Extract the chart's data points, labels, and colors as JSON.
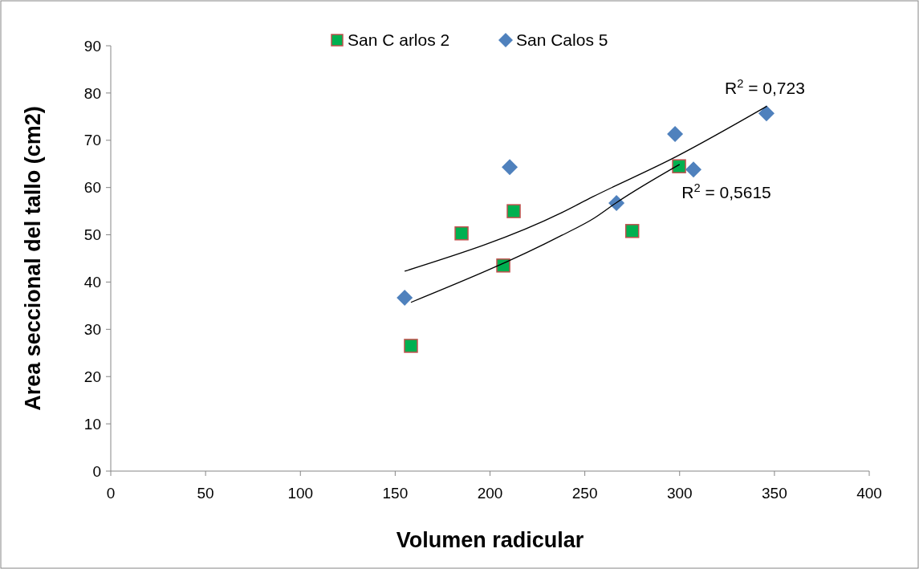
{
  "chart_data": {
    "type": "scatter",
    "xlabel": "Volumen radicular",
    "ylabel": "Area seccional del tallo (cm2)",
    "xlim": [
      0,
      400
    ],
    "xticks": [
      0,
      50,
      100,
      150,
      200,
      250,
      300,
      350,
      400
    ],
    "ylim": [
      0,
      90
    ],
    "yticks": [
      0,
      10,
      20,
      30,
      40,
      50,
      60,
      70,
      80,
      90
    ],
    "grid": false,
    "legend": "top",
    "series": [
      {
        "name": "San C arlos 2",
        "marker": "square",
        "color": "#00b050",
        "x": [
          158.3,
          185,
          207,
          212.5,
          275,
          299.7
        ],
        "values": [
          26.5,
          50.3,
          43.5,
          55,
          50.8,
          64.5
        ]
      },
      {
        "name": "San Calos 5",
        "marker": "diamond",
        "color": "#4f81bd",
        "x": [
          155,
          210.4,
          266.7,
          297.6,
          307.3,
          345.8
        ],
        "values": [
          36.7,
          64.3,
          56.7,
          71.3,
          63.8,
          75.7
        ]
      },
      {
        "type": "line",
        "marker": "none",
        "color": "#000000",
        "x": [
          158.3,
          237.9,
          254.8,
          267,
          300
        ],
        "values": [
          35.7,
          49.9,
          53.5,
          56.9,
          64.9
        ]
      },
      {
        "type": "line",
        "marker": "none",
        "color": "#000000",
        "x": [
          155,
          237.9,
          254,
          298,
          346
        ],
        "values": [
          42.3,
          54.7,
          58,
          66.5,
          77.2
        ]
      }
    ],
    "annotations": [
      "R$^{2}$ = 0,723",
      "R$^{2}$ = 0,5615"
    ]
  }
}
